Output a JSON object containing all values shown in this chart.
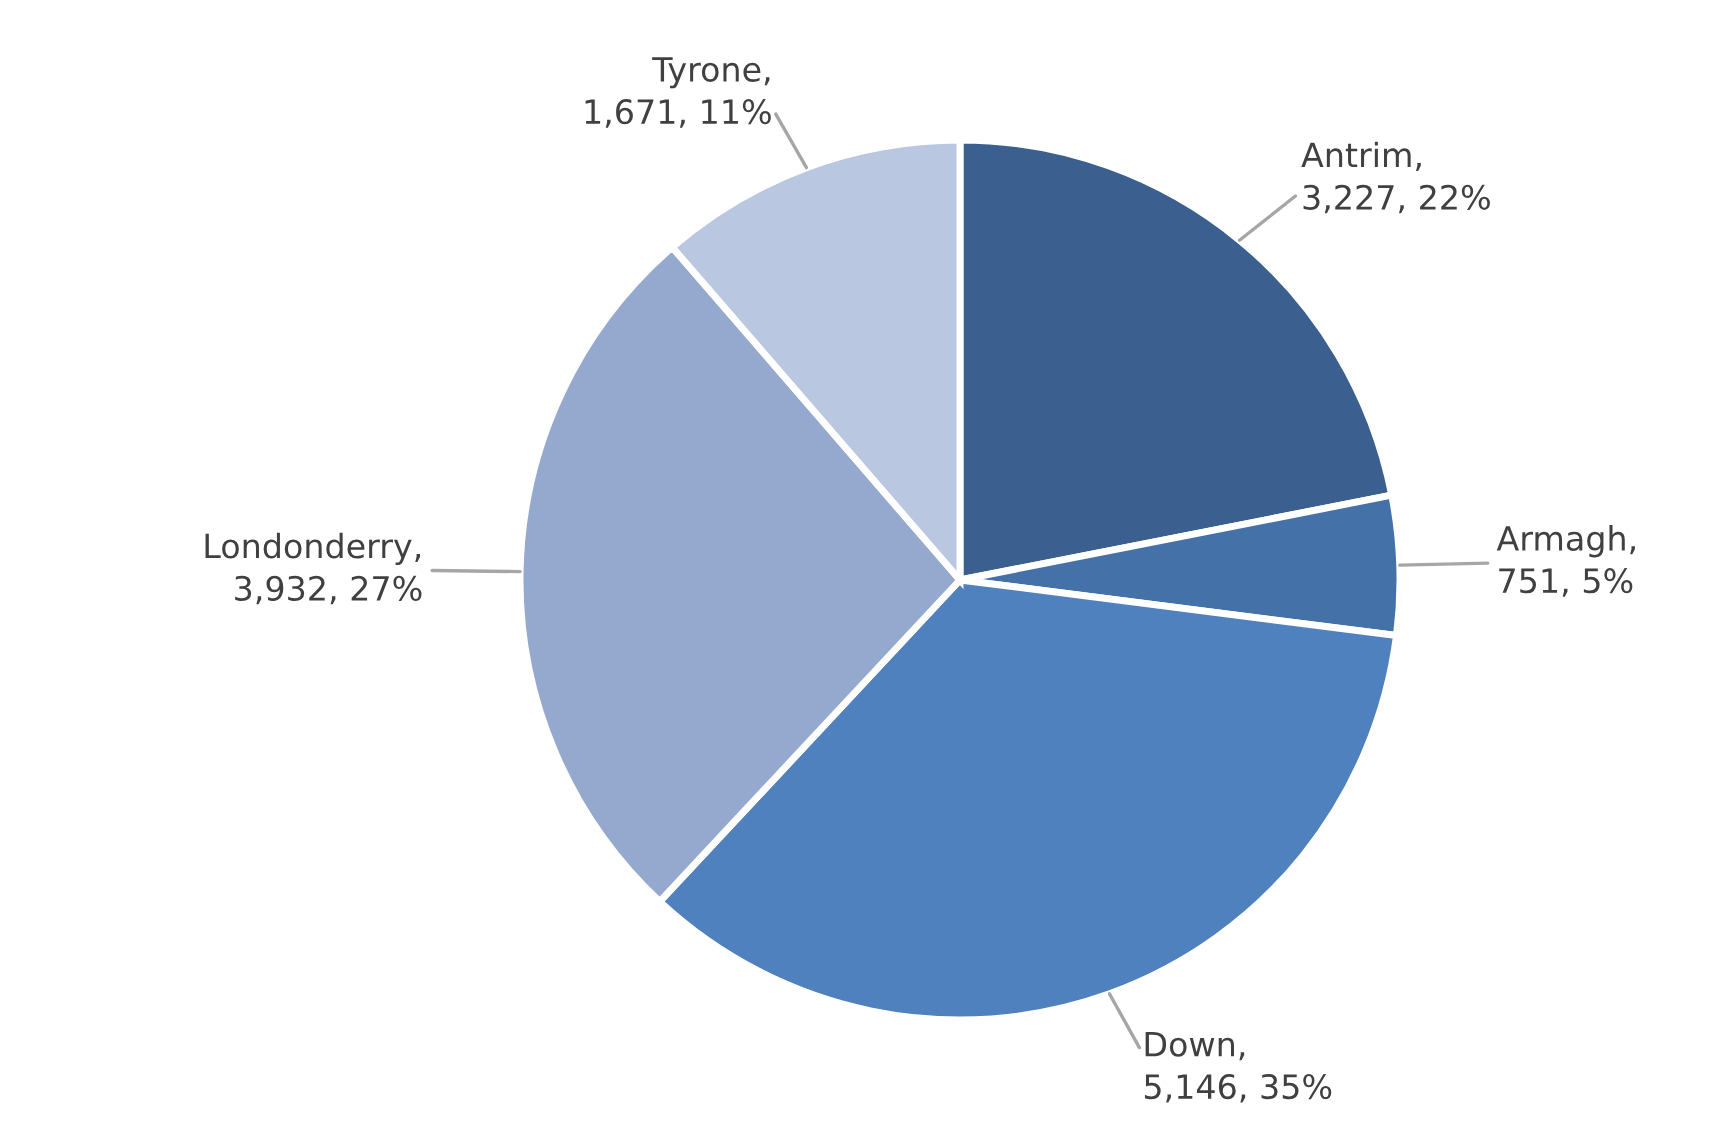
{
  "chart_data": {
    "type": "pie",
    "categories": [
      "Antrim",
      "Armagh",
      "Down",
      "Londonderry",
      "Tyrone"
    ],
    "values": [
      3227,
      751,
      5146,
      3932,
      1671
    ],
    "colors": [
      "#3b5f8f",
      "#4472a8",
      "#4e81bd",
      "#95a9cf",
      "#bac7e0"
    ],
    "value_labels": [
      ",\n3,227, 22%",
      ",\n751, 5%",
      ",\n5,146, 35%",
      ",\n3,932, 27%",
      ",\n1,671, 11%"
    ],
    "legend": false
  }
}
